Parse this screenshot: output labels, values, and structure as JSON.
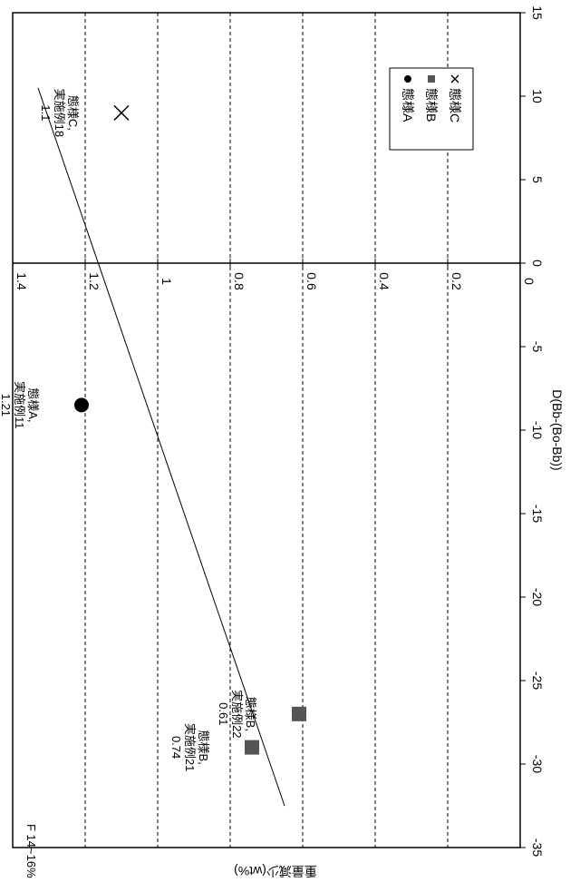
{
  "chart_data": {
    "type": "scatter",
    "orientation": "rotated-90-clockwise",
    "title": "",
    "note": "F 14~16%",
    "xlabel": "D(Bb-(Bo-Bb))",
    "ylabel": "重量減少(wt%)",
    "xlim": [
      -35,
      15
    ],
    "ylim": [
      0,
      1.4
    ],
    "x_ticks": [
      -35,
      -30,
      -25,
      -20,
      -15,
      -10,
      -5,
      0,
      5,
      10,
      15
    ],
    "y_ticks": [
      "0",
      "0.2",
      "0.4",
      "0.6",
      "0.8",
      "1",
      "1.2",
      "1.4"
    ],
    "y_tick_values": [
      0,
      0.2,
      0.4,
      0.6,
      0.8,
      1.0,
      1.2,
      1.4
    ],
    "grid": "dashed-horizontal",
    "legend_position": "top-right",
    "series": [
      {
        "name": "態様A",
        "marker": "circle",
        "color": "#000000",
        "points": [
          {
            "x": -8.5,
            "y": 1.21,
            "label": [
              "態様A,",
              "実施例11",
              "1.21"
            ]
          }
        ]
      },
      {
        "name": "態様B",
        "marker": "square",
        "color": "#555555",
        "points": [
          {
            "x": -29,
            "y": 0.74,
            "label": [
              "態様B,",
              "実施例21",
              "0.74"
            ]
          },
          {
            "x": -27,
            "y": 0.61,
            "label": [
              "態様B,",
              "実施例22",
              "0.61"
            ]
          }
        ]
      },
      {
        "name": "態様C",
        "marker": "x",
        "color": "#000000",
        "points": [
          {
            "x": 9,
            "y": 1.1,
            "label": [
              "態様C,",
              "実施例18",
              "1.1"
            ]
          }
        ]
      }
    ],
    "trend_line": {
      "x": [
        -32.5,
        10.5
      ],
      "y": [
        0.65,
        1.33
      ]
    }
  }
}
